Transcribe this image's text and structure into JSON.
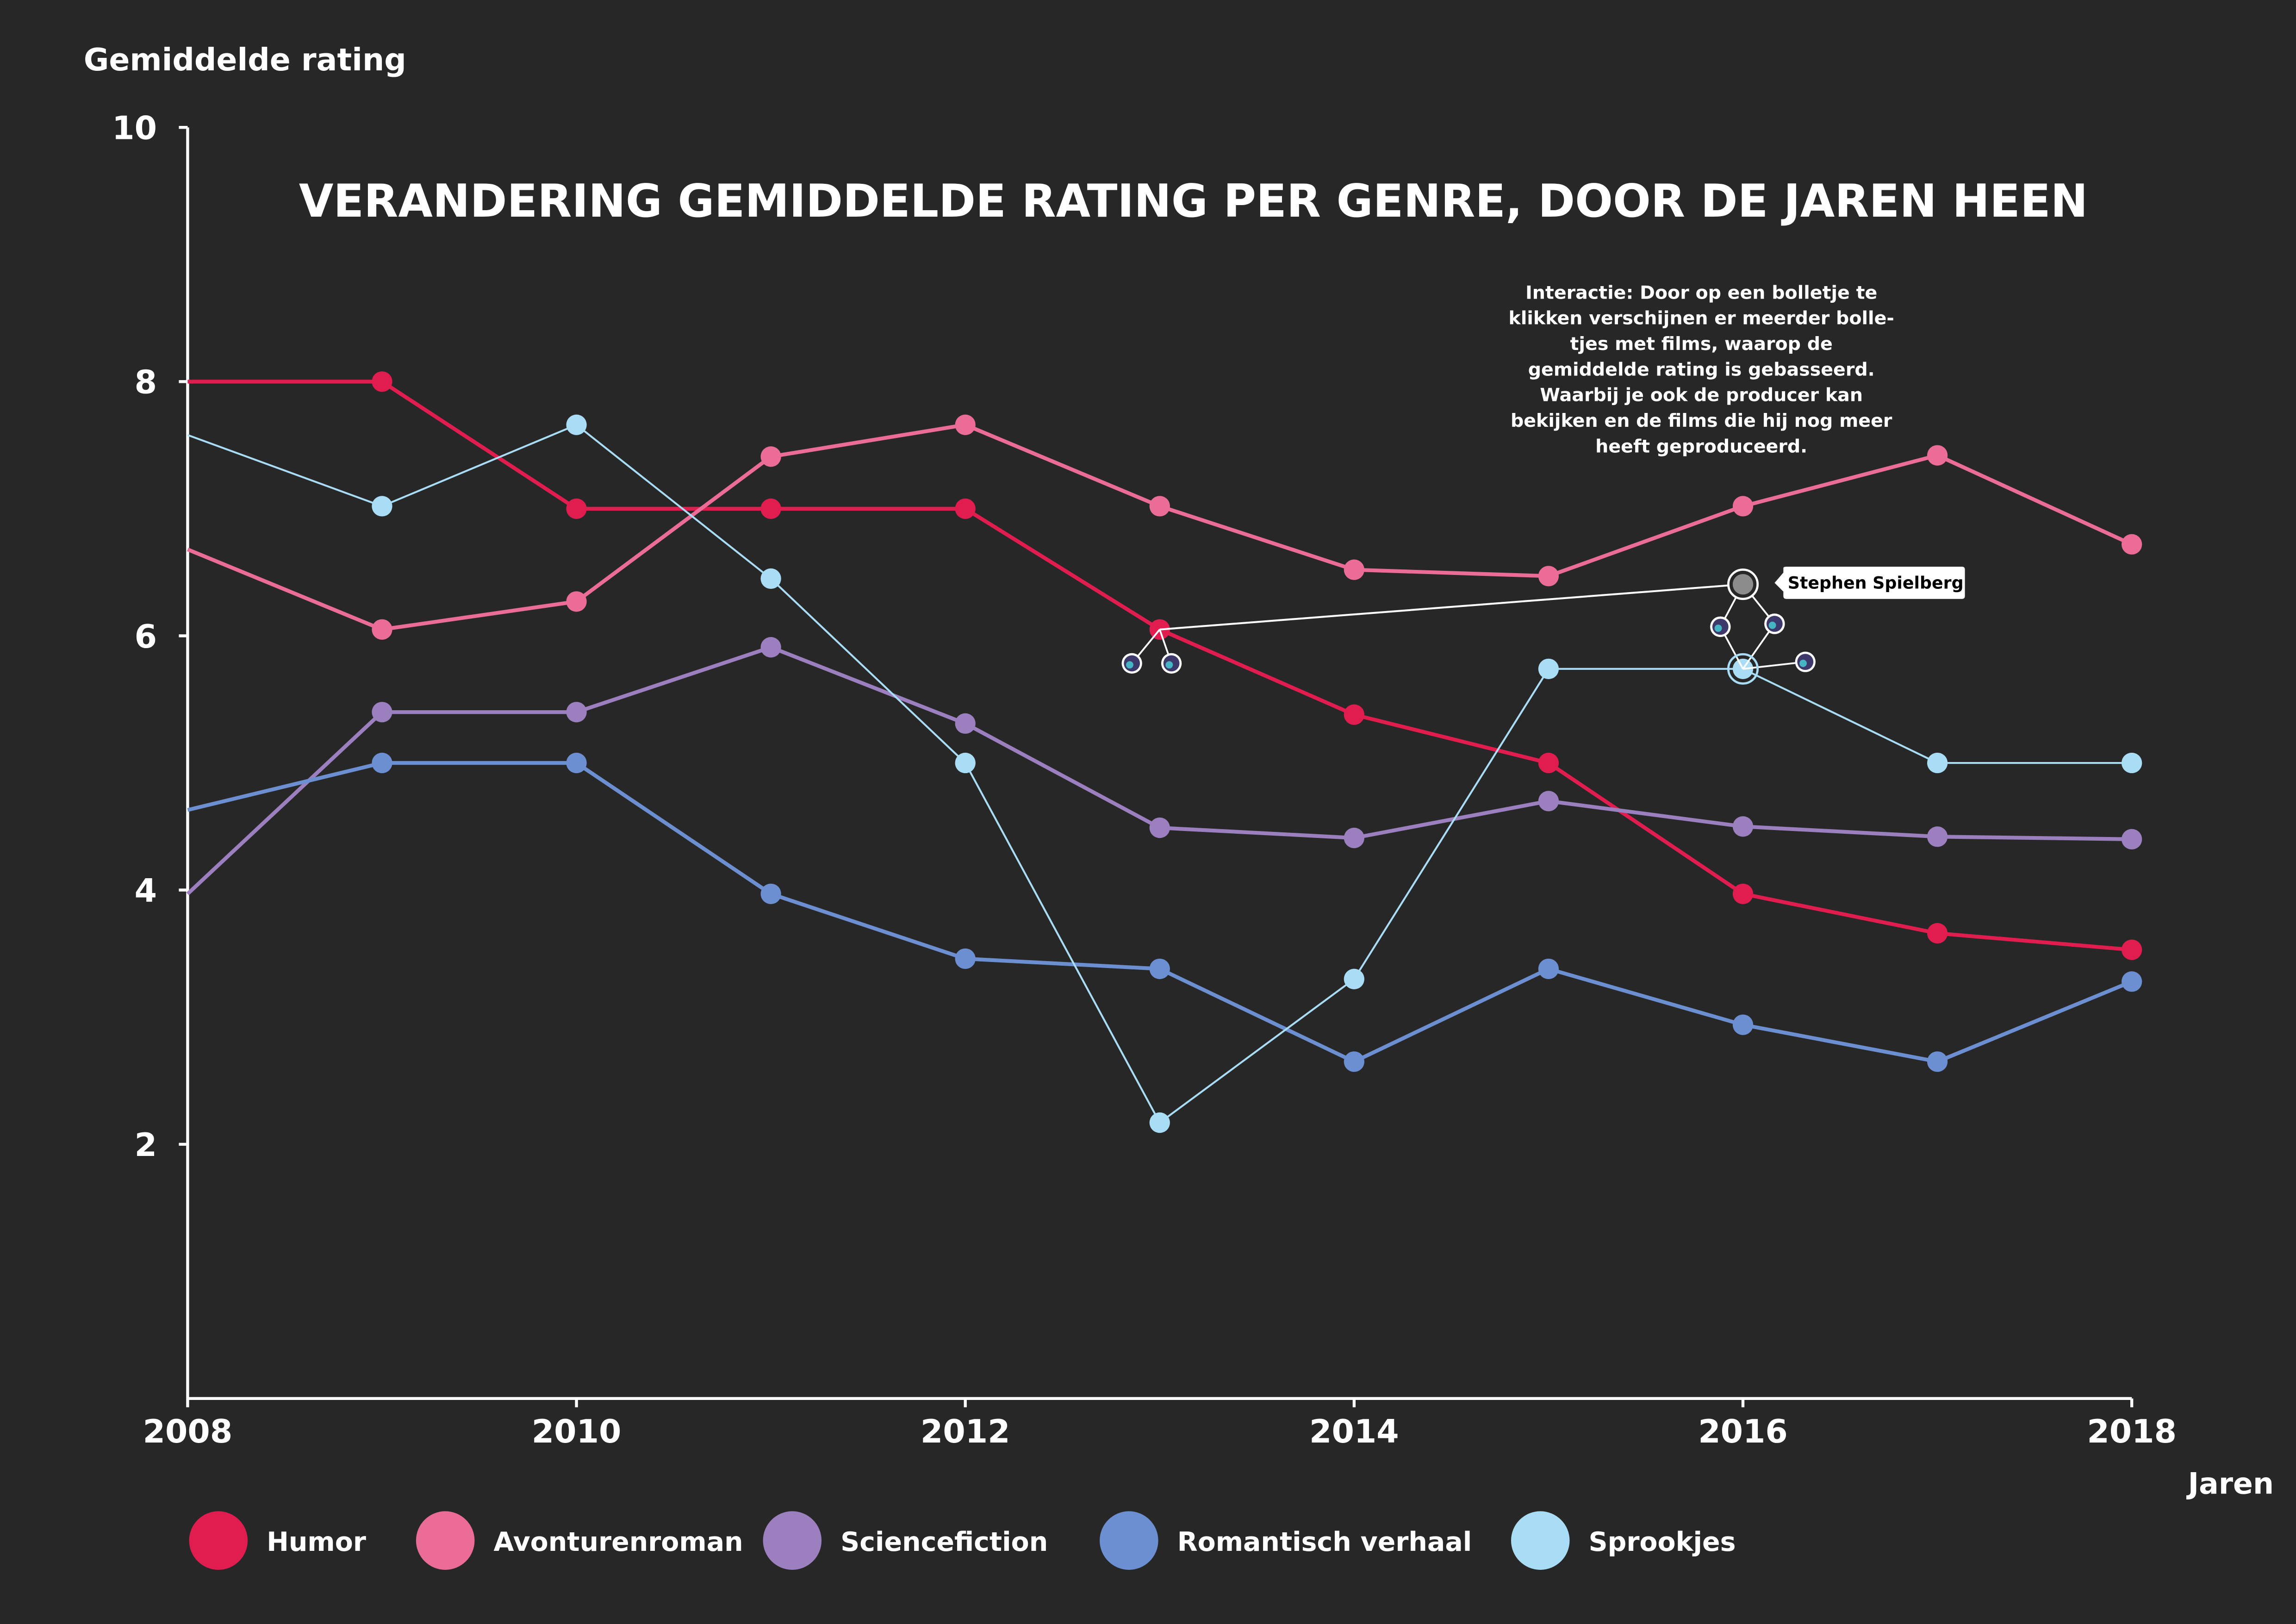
{
  "chart_data": {
    "type": "line",
    "title": "VERANDERING GEMIDDELDE RATING PER GENRE, DOOR DE JAREN HEEN",
    "xlabel": "Jaren",
    "ylabel": "Gemiddelde rating",
    "xlim": [
      2008,
      2018
    ],
    "ylim": [
      0,
      10
    ],
    "x_ticks": [
      "2008",
      "2010",
      "2012",
      "2014",
      "2016",
      "2018"
    ],
    "y_ticks": [
      "2",
      "4",
      "6",
      "8",
      "10"
    ],
    "grid": false,
    "legend_placement": "bottom",
    "x": [
      2008,
      2009,
      2010,
      2011,
      2012,
      2013,
      2014,
      2015,
      2016,
      2017,
      2018
    ],
    "series": [
      {
        "name": "Humor",
        "color": "#e11d4f",
        "values": [
          8.0,
          8.0,
          7.0,
          7.0,
          7.0,
          6.05,
          5.38,
          5.0,
          3.97,
          3.66,
          3.53
        ]
      },
      {
        "name": "Avonturenroman",
        "color": "#ec6c98",
        "values": [
          6.68,
          6.05,
          6.27,
          7.41,
          7.66,
          7.02,
          6.52,
          6.47,
          7.02,
          7.42,
          6.72
        ]
      },
      {
        "name": "Sciencefiction",
        "color": "#9b7fbf",
        "values": [
          3.97,
          5.4,
          5.4,
          5.91,
          5.31,
          4.49,
          4.41,
          4.7,
          4.5,
          4.42,
          4.4
        ]
      },
      {
        "name": "Romantisch verhaal",
        "color": "#6b8fd1",
        "values": [
          4.63,
          5.0,
          5.0,
          3.97,
          3.46,
          3.38,
          2.65,
          3.38,
          2.94,
          2.65,
          3.28
        ]
      },
      {
        "name": "Sprookjes",
        "color": "#a9dcf5",
        "values": [
          7.58,
          7.02,
          7.66,
          6.45,
          5.0,
          2.17,
          3.3,
          5.74,
          5.74,
          5.0,
          5.0
        ]
      }
    ],
    "annotations": {
      "interaction_text": [
        "Interactie: Door op een bolletje te",
        "klikken verschijnen er meerder bolle-",
        "tjes met films, waarop de",
        "gemiddelde rating is gebasseerd.",
        "Waarbij je ook de producer kan",
        "bekijken en de films die hij nog meer",
        "heeft geproduceerd."
      ],
      "producer_label": "Stephen Spielberg"
    }
  }
}
